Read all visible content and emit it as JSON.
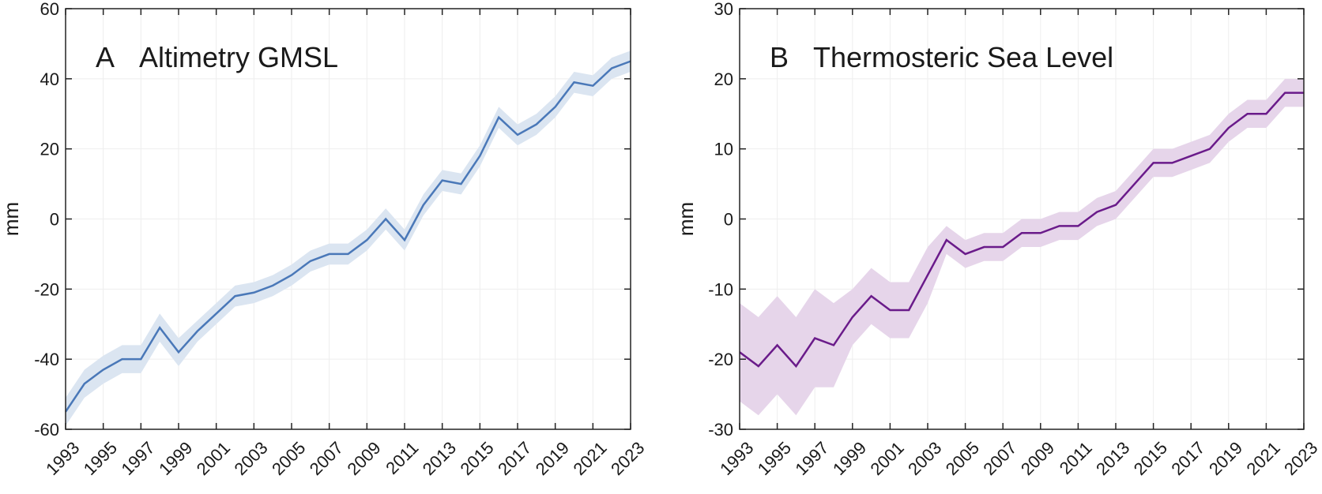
{
  "chart_data": [
    {
      "type": "line",
      "label": "A",
      "title": "Altimetry GMSL",
      "ylabel": "mm",
      "x": [
        1993,
        1994,
        1995,
        1996,
        1997,
        1998,
        1999,
        2000,
        2001,
        2002,
        2003,
        2004,
        2005,
        2006,
        2007,
        2008,
        2009,
        2010,
        2011,
        2012,
        2013,
        2014,
        2015,
        2016,
        2017,
        2018,
        2019,
        2020,
        2021,
        2022,
        2023
      ],
      "xlim": [
        1993,
        2023
      ],
      "xticks": [
        1993,
        1995,
        1997,
        1999,
        2001,
        2003,
        2005,
        2007,
        2009,
        2011,
        2013,
        2015,
        2017,
        2019,
        2021,
        2023
      ],
      "ylim": [
        -60,
        60
      ],
      "yticks": [
        -60,
        -40,
        -20,
        0,
        20,
        40,
        60
      ],
      "grid": true,
      "series": [
        {
          "color": "#4a78b8",
          "band_color": "#dbe5f1",
          "values": [
            -55,
            -47,
            -43,
            -40,
            -40,
            -31,
            -38,
            -32,
            -27,
            -22,
            -21,
            -19,
            -16,
            -12,
            -10,
            -10,
            -6,
            0,
            -6,
            4,
            11,
            10,
            18,
            29,
            24,
            27,
            32,
            39,
            38,
            43,
            45
          ],
          "error": [
            4,
            4,
            4,
            4,
            4,
            4,
            4,
            3,
            3,
            3,
            3,
            3,
            3,
            3,
            3,
            3,
            3,
            3,
            3,
            3,
            3,
            3,
            3,
            3,
            3,
            3,
            3,
            3,
            3,
            3,
            3
          ]
        }
      ]
    },
    {
      "type": "line",
      "label": "B",
      "title": "Thermosteric Sea Level",
      "ylabel": "mm",
      "x": [
        1993,
        1994,
        1995,
        1996,
        1997,
        1998,
        1999,
        2000,
        2001,
        2002,
        2003,
        2004,
        2005,
        2006,
        2007,
        2008,
        2009,
        2010,
        2011,
        2012,
        2013,
        2014,
        2015,
        2016,
        2017,
        2018,
        2019,
        2020,
        2021,
        2022,
        2023
      ],
      "xlim": [
        1993,
        2023
      ],
      "xticks": [
        1993,
        1995,
        1997,
        1999,
        2001,
        2003,
        2005,
        2007,
        2009,
        2011,
        2013,
        2015,
        2017,
        2019,
        2021,
        2023
      ],
      "ylim": [
        -30,
        30
      ],
      "yticks": [
        -30,
        -20,
        -10,
        0,
        10,
        20,
        30
      ],
      "grid": true,
      "series": [
        {
          "color": "#6a1b8a",
          "band_color": "#e6d5ea",
          "values": [
            -19,
            -21,
            -18,
            -21,
            -17,
            -18,
            -14,
            -11,
            -13,
            -13,
            -8,
            -3,
            -5,
            -4,
            -4,
            -2,
            -2,
            -1,
            -1,
            1,
            2,
            5,
            8,
            8,
            9,
            10,
            13,
            15,
            15,
            18,
            18
          ],
          "error": [
            7,
            7,
            7,
            7,
            7,
            6,
            4,
            4,
            4,
            4,
            4,
            2,
            2,
            2,
            2,
            2,
            2,
            2,
            2,
            2,
            2,
            2,
            2,
            2,
            2,
            2,
            2,
            2,
            2,
            2,
            2
          ]
        }
      ]
    }
  ]
}
